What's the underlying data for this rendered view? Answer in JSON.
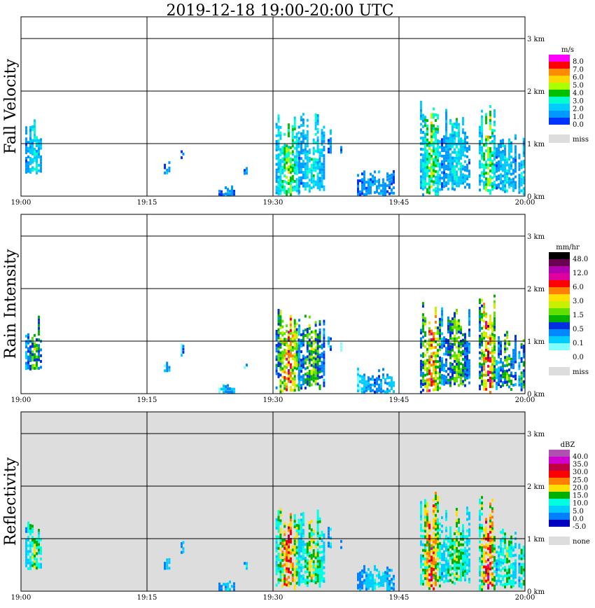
{
  "title": "2019-12-18   19:00-20:00 UTC",
  "chart_data": [
    {
      "type": "heatmap",
      "title": "Fall Velocity",
      "xlabel": "",
      "x_ticks": [
        "19:00",
        "19:15",
        "19:30",
        "19:45",
        "20:00"
      ],
      "y_ticks": [
        "0 km",
        "1 km",
        "2 km",
        "3 km"
      ],
      "ylim": [
        0,
        3.5
      ],
      "background": "#ffffff",
      "colorbar": {
        "unit": "m/s",
        "labels": [
          "8.0",
          "7.0",
          "6.0",
          "5.0",
          "4.0",
          "3.0",
          "2.0",
          "1.0",
          "0.0"
        ],
        "colors": [
          "#ff00ff",
          "#ff0000",
          "#ff8c00",
          "#ffd700",
          "#aaff00",
          "#00c000",
          "#00ffcc",
          "#00ccff",
          "#0099ff",
          "#0033ff"
        ],
        "miss_label": "miss",
        "miss_color": "#dddddd"
      }
    },
    {
      "type": "heatmap",
      "title": "Rain Intensity",
      "xlabel": "",
      "x_ticks": [
        "19:00",
        "19:15",
        "19:30",
        "19:45",
        "20:00"
      ],
      "y_ticks": [
        "0 km",
        "1 km",
        "2 km",
        "3 km"
      ],
      "ylim": [
        0,
        3.5
      ],
      "background": "#ffffff",
      "colorbar": {
        "unit": "mm/hr",
        "labels": [
          "48.0",
          "12.0",
          "6.0",
          "3.0",
          "1.5",
          "0.5",
          "0.1",
          "0.0"
        ],
        "colors": [
          "#000000",
          "#6a0050",
          "#b000b0",
          "#e000a0",
          "#ff0000",
          "#ff8000",
          "#ffe000",
          "#c8f000",
          "#60e000",
          "#00b000",
          "#0030e0",
          "#0088ff",
          "#00ccff",
          "#80ffff",
          "#ffffff"
        ],
        "miss_label": "miss",
        "miss_color": "#dddddd"
      }
    },
    {
      "type": "heatmap",
      "title": "Reflectivity",
      "xlabel": "",
      "x_ticks": [
        "19:00",
        "19:15",
        "19:30",
        "19:45",
        "20:00"
      ],
      "y_ticks": [
        "0 km",
        "1 km",
        "2 km",
        "3 km"
      ],
      "ylim": [
        0,
        3.5
      ],
      "background": "#dddddd",
      "colorbar": {
        "unit": "dBZ",
        "labels": [
          "40.0",
          "35.0",
          "30.0",
          "25.0",
          "20.0",
          "15.0",
          "10.0",
          "5.0",
          "0.0",
          "-5.0"
        ],
        "colors": [
          "#b050b0",
          "#d000d0",
          "#c00040",
          "#ff0000",
          "#ff8000",
          "#ffe000",
          "#00b000",
          "#00ffe0",
          "#00ccff",
          "#0080ff",
          "#0000c0"
        ],
        "miss_label": "none",
        "miss_color": "#dddddd"
      }
    }
  ],
  "echo_cells": [
    {
      "t0": 0.5,
      "t1": 2.5,
      "bottom": 0.4,
      "top": 1.5,
      "intensity": 0.55
    },
    {
      "t0": 17.0,
      "t1": 17.8,
      "bottom": 0.4,
      "top": 0.7,
      "intensity": 0.3
    },
    {
      "t0": 19.0,
      "t1": 19.4,
      "bottom": 0.7,
      "top": 1.0,
      "intensity": 0.3
    },
    {
      "t0": 23.5,
      "t1": 25.5,
      "bottom": 0.0,
      "top": 0.2,
      "intensity": 0.25
    },
    {
      "t0": 26.5,
      "t1": 27.0,
      "bottom": 0.4,
      "top": 0.6,
      "intensity": 0.25
    },
    {
      "t0": 30.3,
      "t1": 33.2,
      "bottom": 0.0,
      "top": 1.7,
      "intensity": 0.9
    },
    {
      "t0": 33.0,
      "t1": 36.2,
      "bottom": 0.05,
      "top": 1.6,
      "intensity": 0.6
    },
    {
      "t0": 36.5,
      "t1": 37.0,
      "bottom": 0.8,
      "top": 1.3,
      "intensity": 0.3
    },
    {
      "t0": 38.0,
      "t1": 38.3,
      "bottom": 0.8,
      "top": 1.0,
      "intensity": 0.2
    },
    {
      "t0": 40.0,
      "t1": 44.5,
      "bottom": 0.0,
      "top": 0.5,
      "intensity": 0.3
    },
    {
      "t0": 47.5,
      "t1": 50.0,
      "bottom": 0.0,
      "top": 1.9,
      "intensity": 0.9
    },
    {
      "t0": 50.0,
      "t1": 53.5,
      "bottom": 0.1,
      "top": 1.7,
      "intensity": 0.55
    },
    {
      "t0": 54.5,
      "t1": 56.5,
      "bottom": 0.0,
      "top": 1.9,
      "intensity": 1.0
    },
    {
      "t0": 56.5,
      "t1": 59.0,
      "bottom": 0.05,
      "top": 1.2,
      "intensity": 0.5
    },
    {
      "t0": 59.2,
      "t1": 60.0,
      "bottom": 0.0,
      "top": 1.4,
      "intensity": 0.55
    }
  ]
}
